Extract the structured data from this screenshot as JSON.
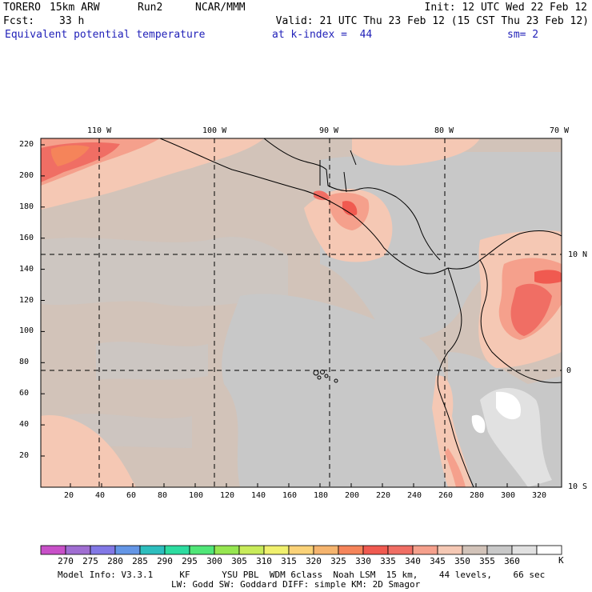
{
  "header": {
    "model": "TORERO",
    "resolution": "15km ARW",
    "run": "Run2",
    "center": "NCAR/MMM",
    "init": "Init: 12 UTC Wed 22 Feb 12",
    "fcst_label": "Fcst:",
    "fcst_value": "33 h",
    "valid": "Valid: 21 UTC Thu 23 Feb 12 (15 CST Thu 23 Feb 12)",
    "field": "Equivalent potential temperature",
    "level": "at k-index =  44",
    "smoothing": "sm= 2"
  },
  "map": {
    "top_labels": [
      "110 W",
      "100 W",
      "90 W",
      "80 W",
      "70 W"
    ],
    "right_labels": [
      "10 N",
      "0",
      "10 S"
    ],
    "y_ticks": [
      "220",
      "200",
      "180",
      "160",
      "140",
      "120",
      "100",
      "80",
      "60",
      "40",
      "20"
    ],
    "x_ticks": [
      "20",
      "40",
      "60",
      "80",
      "100",
      "120",
      "140",
      "160",
      "180",
      "200",
      "220",
      "240",
      "260",
      "280",
      "300",
      "320"
    ]
  },
  "colorbar": {
    "values": [
      "270",
      "275",
      "280",
      "285",
      "290",
      "295",
      "300",
      "305",
      "310",
      "315",
      "320",
      "325",
      "330",
      "335",
      "340",
      "345",
      "350",
      "355",
      "360"
    ],
    "unit": "K",
    "colors": [
      "#c850c8",
      "#a06ed2",
      "#8278e6",
      "#6496e6",
      "#2dbebe",
      "#2ddca0",
      "#50e678",
      "#96e650",
      "#c8eb5a",
      "#f0f06e",
      "#fad278",
      "#f5b46e",
      "#f5845a",
      "#f05a50",
      "#f06e64",
      "#f5a08c",
      "#f5c8b4",
      "#d2c3b9",
      "#c8c8c8",
      "#e1e1e1",
      "#ffffff"
    ]
  },
  "footer": {
    "line1": "Model Info: V3.3.1     KF      YSU PBL  WDM 6class  Noah LSM  15 km,    44 levels,    66 sec",
    "line2": "LW: Godd SW: Goddard DIFF: simple KM: 2D Smagor"
  }
}
